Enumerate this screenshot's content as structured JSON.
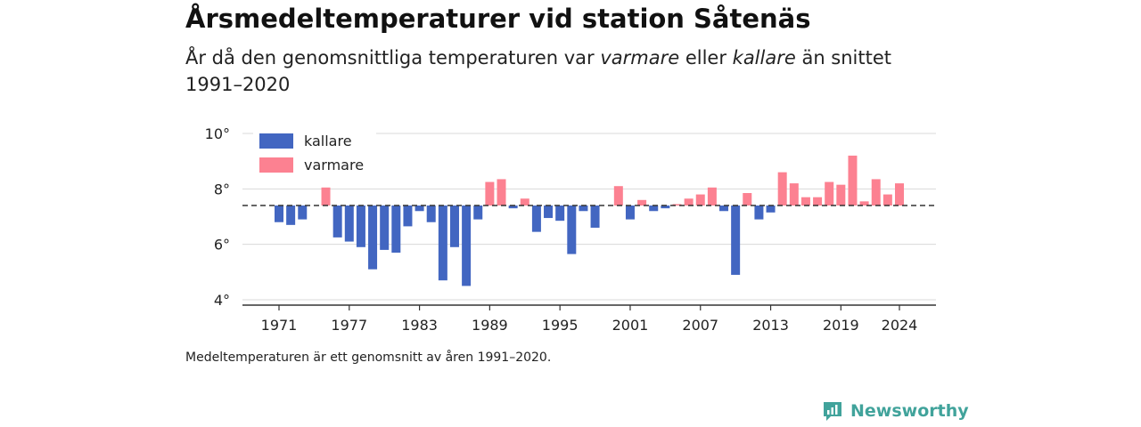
{
  "header": {
    "title": "Årsmedeltemperaturer vid station Såtenäs",
    "subtitle_parts": [
      "År då den genomsnittliga temperaturen var ",
      "varmare",
      " eller ",
      "kallare",
      " än snittet 1991–2020"
    ]
  },
  "footnote": "Medeltemperaturen är ett genomsnitt av åren 1991–2020.",
  "brand": {
    "name": "Newsworthy",
    "color": "#41a39b"
  },
  "chart_data": {
    "type": "bar",
    "title": "Årsmedeltemperaturer vid station Såtenäs",
    "baseline": 7.4,
    "ylim": [
      3.8,
      10
    ],
    "yticks": [
      4,
      6,
      8,
      10
    ],
    "ytick_labels": [
      "4°",
      "6°",
      "8°",
      "10°"
    ],
    "xticks": [
      1971,
      1977,
      1983,
      1989,
      1995,
      2001,
      2007,
      2013,
      2019,
      2024
    ],
    "grid": true,
    "legend_position": "top-left",
    "legend": [
      {
        "name": "kallare",
        "color": "#4266c1"
      },
      {
        "name": "varmare",
        "color": "#fc8191"
      }
    ],
    "colors": {
      "colder": "#4266c1",
      "warmer": "#fc8191"
    },
    "x": [
      1971,
      1972,
      1973,
      1974,
      1975,
      1976,
      1977,
      1978,
      1979,
      1980,
      1981,
      1982,
      1983,
      1984,
      1985,
      1986,
      1987,
      1988,
      1989,
      1990,
      1991,
      1992,
      1993,
      1994,
      1995,
      1996,
      1997,
      1998,
      1999,
      2000,
      2001,
      2002,
      2003,
      2004,
      2005,
      2006,
      2007,
      2008,
      2009,
      2010,
      2011,
      2012,
      2013,
      2014,
      2015,
      2016,
      2017,
      2018,
      2019,
      2020,
      2021,
      2022,
      2023,
      2024
    ],
    "values": [
      6.8,
      6.7,
      6.9,
      7.4,
      8.05,
      6.25,
      6.1,
      5.9,
      5.1,
      5.8,
      5.7,
      6.65,
      7.2,
      6.8,
      4.7,
      5.9,
      4.5,
      6.9,
      8.25,
      8.35,
      7.3,
      7.65,
      6.45,
      6.95,
      6.85,
      5.65,
      7.2,
      6.6,
      7.4,
      8.1,
      6.9,
      7.6,
      7.2,
      7.3,
      7.45,
      7.65,
      7.8,
      8.05,
      7.2,
      4.9,
      7.85,
      6.9,
      7.15,
      8.6,
      8.2,
      7.7,
      7.7,
      8.25,
      8.15,
      9.2,
      7.55,
      8.35,
      7.8,
      8.2
    ]
  }
}
